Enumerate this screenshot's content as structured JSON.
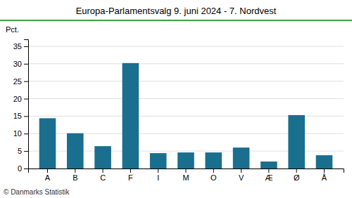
{
  "chart_data": {
    "type": "bar",
    "title": "Europa-Parlamentsvalg 9. juni 2024 - 7. Nordvest",
    "categories": [
      "A",
      "B",
      "C",
      "F",
      "I",
      "M",
      "O",
      "V",
      "Æ",
      "Ø",
      "Å"
    ],
    "values": [
      14.4,
      10.1,
      6.4,
      30.2,
      4.4,
      4.6,
      4.6,
      6.0,
      2.0,
      15.3,
      3.8
    ],
    "color": "#1a6e8e",
    "ylabel": "Pct.",
    "ylim": [
      0,
      37
    ],
    "yticks": [
      0,
      5,
      10,
      15,
      20,
      25,
      30,
      35
    ],
    "grid": true,
    "annotations": [
      "© Danmarks Statistik"
    ]
  }
}
